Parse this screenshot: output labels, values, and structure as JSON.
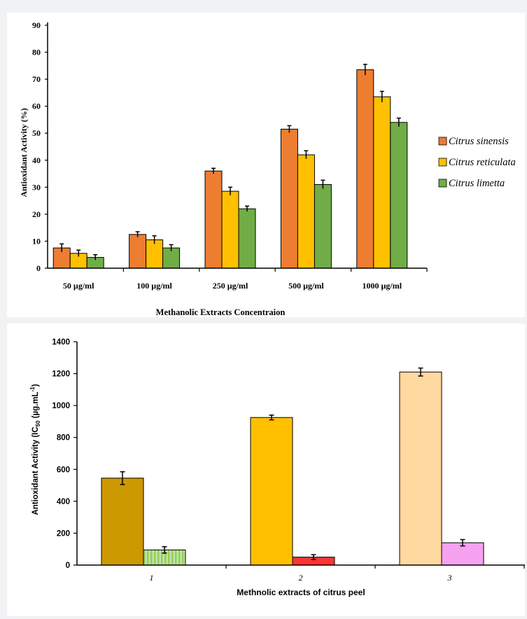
{
  "chart_data": [
    {
      "type": "bar",
      "ylabel": "Antioxidant  Activity (%)",
      "xlabel": "Methanolic Extracts Concentraion",
      "ylim": [
        0,
        90
      ],
      "yticks": [
        0,
        10,
        20,
        30,
        40,
        50,
        60,
        70,
        80,
        90
      ],
      "categories": [
        "50 µg/ml",
        "100 µg/ml",
        "250 µg/ml",
        "500 µg/ml",
        "1000 µg/ml"
      ],
      "legend_position": "right",
      "series": [
        {
          "name": "Citrus sinensis",
          "color": "#ed7d31",
          "values": [
            7.5,
            12.5,
            36,
            51.5,
            73.5
          ],
          "errors": [
            1.5,
            1,
            1,
            1.3,
            2
          ]
        },
        {
          "name": "Citrus reticulata",
          "color": "#ffc000",
          "values": [
            5.5,
            10.5,
            28.5,
            42,
            63.5
          ],
          "errors": [
            1.2,
            1.5,
            1.5,
            1.5,
            2
          ]
        },
        {
          "name": "Citrus limetta",
          "color": "#70ad47",
          "values": [
            4,
            7.5,
            22,
            31,
            54
          ],
          "errors": [
            1,
            1.2,
            1,
            1.6,
            1.6
          ]
        }
      ]
    },
    {
      "type": "bar",
      "ylabel": "Antioxidant Activity (IC",
      "ylabel_sub": "50",
      "ylabel_rest": " (µg.mL",
      "ylabel_sup": "-1",
      "ylabel_end": ")",
      "xlabel": "Methnolic extracts of citrus peel",
      "ylim": [
        0,
        1400
      ],
      "yticks": [
        0,
        200,
        400,
        600,
        800,
        1000,
        1200,
        1400
      ],
      "categories": [
        "1",
        "2",
        "3"
      ],
      "bars": [
        {
          "category": "1",
          "value": 545,
          "error": 40,
          "color": "#cc9900"
        },
        {
          "category": "1",
          "value": 95,
          "error": 20,
          "color": "#a9d18e",
          "pattern": "stripes"
        },
        {
          "category": "2",
          "value": 925,
          "error": 15,
          "color": "#ffc000"
        },
        {
          "category": "2",
          "value": 50,
          "error": 15,
          "color": "#ff3333"
        },
        {
          "category": "3",
          "value": 1210,
          "error": 25,
          "color": "#ffd9a0"
        },
        {
          "category": "3",
          "value": 140,
          "error": 20,
          "color": "#f7a2f0"
        }
      ]
    }
  ]
}
